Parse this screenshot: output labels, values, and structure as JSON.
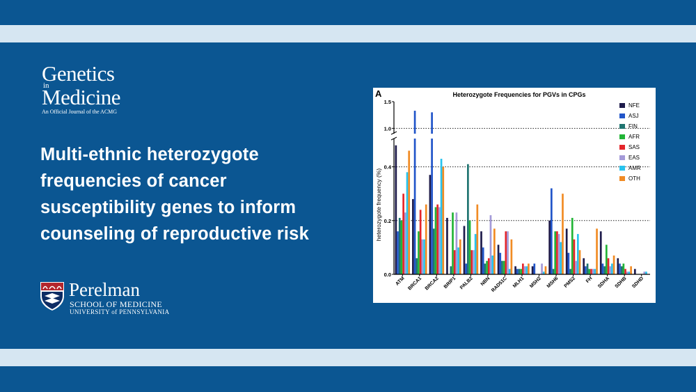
{
  "journal": {
    "title_line1": "Genetics",
    "title_in": "in",
    "title_line2": "Medicine",
    "tagline": "An Official Journal of the ACMG"
  },
  "headline": {
    "lines": [
      "Multi-ethnic heterozygote",
      "frequencies of cancer",
      "susceptibility genes to inform",
      "counseling of reproductive risk"
    ]
  },
  "institution": {
    "name": "Perelman",
    "school": "SCHOOL OF MEDICINE",
    "university": "UNIVERSITY of PENNSYLVANIA"
  },
  "colors": {
    "background": "#0b5692",
    "band": "#d6e6f2"
  },
  "chart_data": {
    "type": "bar",
    "panel_label": "A",
    "title": "Heterozygote Frequencies for PGVs in CPGs",
    "xlabel": "",
    "ylabel": "heterozygote frequency (%)",
    "y_axis_break": true,
    "ylim_lower": [
      0,
      0.5
    ],
    "ylim_upper": [
      0.9,
      1.5
    ],
    "yticks": [
      "0.0",
      "0.2",
      "0.4",
      "1.0",
      "1.5"
    ],
    "grid": "dotted horizontal at 0.2, 0.4, 1.0",
    "legend_position": "top-right",
    "categories": [
      "ATM",
      "BRCA1",
      "BRCA2",
      "BRIP1",
      "PALB2",
      "NBN",
      "RAD51C",
      "MLH1",
      "MSH2",
      "MSH6",
      "PMS2",
      "FH",
      "SDHA",
      "SDHB",
      "SDHD"
    ],
    "series": [
      {
        "name": "NFE",
        "color": "#1e1b4b",
        "values": [
          0.48,
          0.28,
          0.37,
          0.21,
          0.18,
          0.16,
          0.11,
          0.03,
          0.03,
          0.2,
          0.17,
          0.06,
          0.16,
          0.06,
          0.02
        ]
      },
      {
        "name": "ASJ",
        "color": "#2155c9",
        "values": [
          0.16,
          1.33,
          1.3,
          0.0,
          0.04,
          0.1,
          0.08,
          0.02,
          0.04,
          0.32,
          0.08,
          0.03,
          0.04,
          0.04,
          0.0
        ]
      },
      {
        "name": "FIN",
        "color": "#1f7470",
        "values": [
          0.21,
          0.06,
          0.17,
          0.03,
          0.41,
          0.04,
          0.05,
          0.02,
          0.0,
          0.02,
          0.02,
          0.04,
          0.03,
          0.03,
          0.0
        ]
      },
      {
        "name": "AFR",
        "color": "#22b436",
        "values": [
          0.2,
          0.16,
          0.25,
          0.23,
          0.2,
          0.05,
          0.05,
          0.02,
          0.0,
          0.16,
          0.21,
          0.02,
          0.11,
          0.04,
          0.0
        ]
      },
      {
        "name": "SAS",
        "color": "#e4252a",
        "values": [
          0.3,
          0.24,
          0.26,
          0.09,
          0.09,
          0.06,
          0.16,
          0.04,
          0.0,
          0.16,
          0.13,
          0.02,
          0.06,
          0.02,
          0.0
        ]
      },
      {
        "name": "EAS",
        "color": "#a49ad8",
        "values": [
          0.23,
          0.13,
          0.25,
          0.23,
          0.09,
          0.22,
          0.16,
          0.03,
          0.04,
          0.15,
          0.05,
          0.02,
          0.03,
          0.01,
          0.01
        ]
      },
      {
        "name": "AMR",
        "color": "#27c3ee",
        "values": [
          0.38,
          0.13,
          0.43,
          0.1,
          0.15,
          0.07,
          0.02,
          0.03,
          0.01,
          0.12,
          0.15,
          0.02,
          0.04,
          0.01,
          0.01
        ]
      },
      {
        "name": "OTH",
        "color": "#f18b24",
        "values": [
          0.46,
          0.26,
          0.4,
          0.13,
          0.26,
          0.17,
          0.13,
          0.04,
          0.03,
          0.3,
          0.09,
          0.17,
          0.07,
          0.03,
          0.0
        ]
      }
    ]
  }
}
